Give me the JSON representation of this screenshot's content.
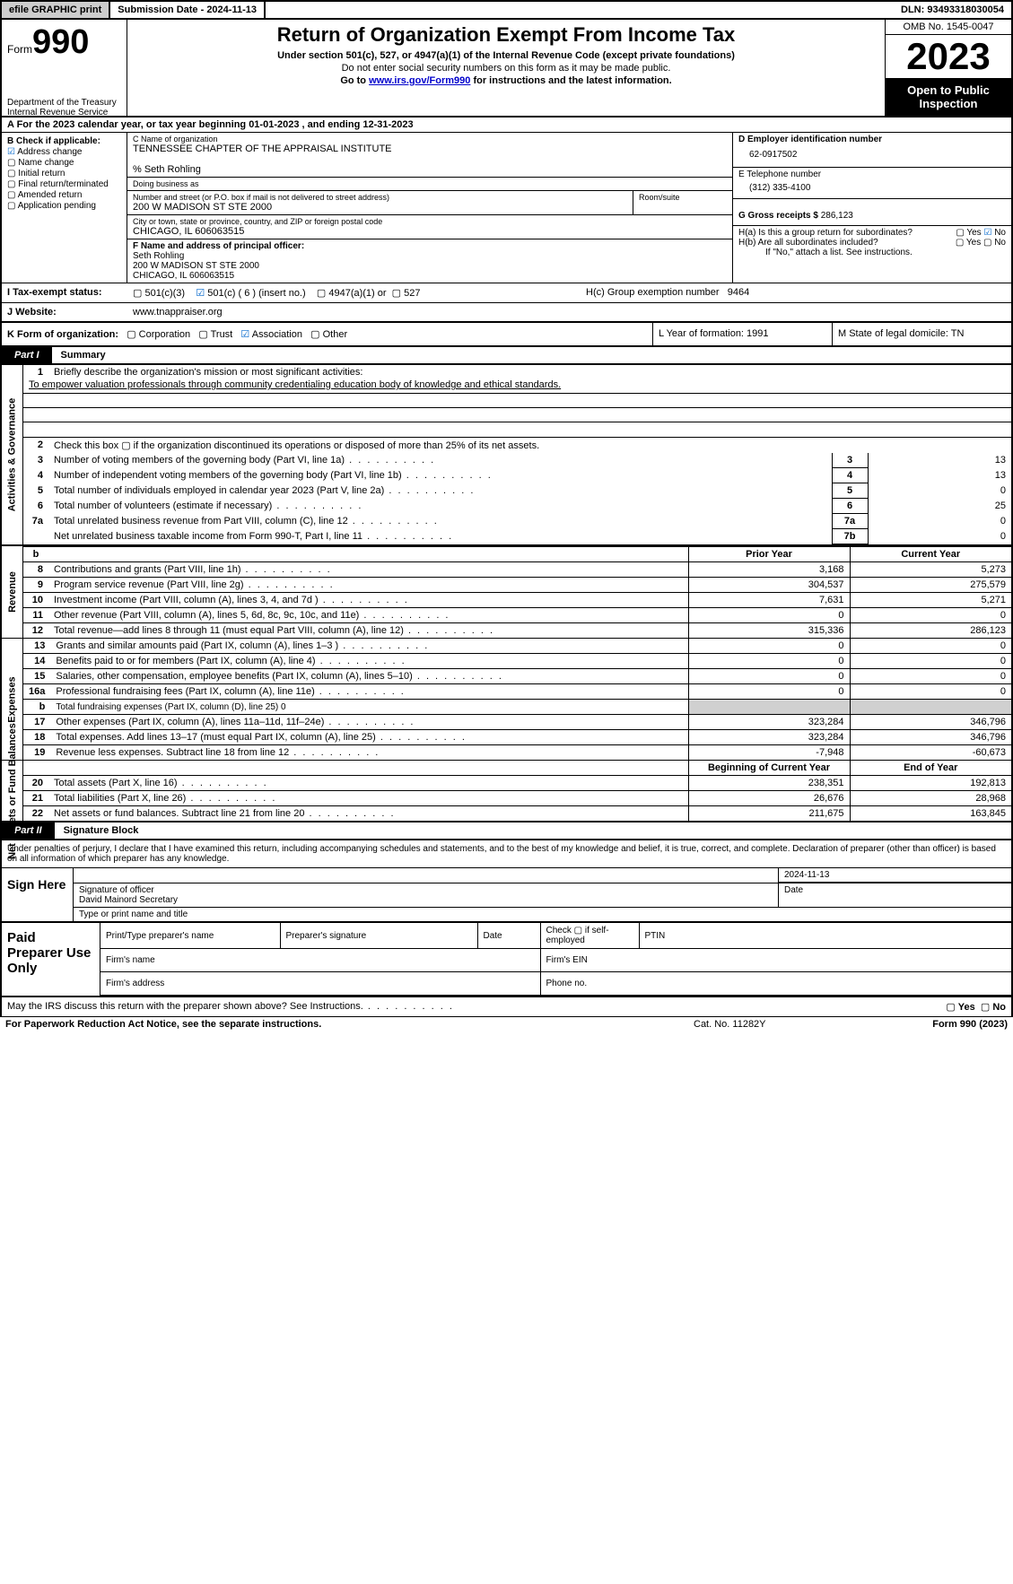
{
  "topbar": {
    "efile_btn": "efile GRAPHIC print",
    "submission": "Submission Date - 2024-11-13",
    "dln": "DLN: 93493318030054"
  },
  "header": {
    "form_label": "Form",
    "form_no": "990",
    "dept": "Department of the Treasury",
    "irs": "Internal Revenue Service",
    "title": "Return of Organization Exempt From Income Tax",
    "sub1": "Under section 501(c), 527, or 4947(a)(1) of the Internal Revenue Code (except private foundations)",
    "sub2": "Do not enter social security numbers on this form as it may be made public.",
    "sub3_pre": "Go to ",
    "sub3_link": "www.irs.gov/Form990",
    "sub3_post": " for instructions and the latest information.",
    "omb": "OMB No. 1545-0047",
    "year": "2023",
    "open": "Open to Public Inspection"
  },
  "row_a": "A  For the 2023 calendar year, or tax year beginning 01-01-2023    , and ending 12-31-2023",
  "col_b": {
    "label": "B Check if applicable:",
    "items": [
      "Address change",
      "Name change",
      "Initial return",
      "Final return/terminated",
      "Amended return",
      "Application pending"
    ]
  },
  "col_c": {
    "name_lbl": "C Name of organization",
    "name": "TENNESSEE CHAPTER OF THE APPRAISAL INSTITUTE",
    "care": "% Seth Rohling",
    "dba_lbl": "Doing business as",
    "addr_lbl": "Number and street (or P.O. box if mail is not delivered to street address)",
    "addr": "200 W MADISON ST STE 2000",
    "room_lbl": "Room/suite",
    "city_lbl": "City or town, state or province, country, and ZIP or foreign postal code",
    "city": "CHICAGO, IL  606063515",
    "f_lbl": "F  Name and address of principal officer:",
    "f_name": "Seth Rohling",
    "f_addr1": "200 W MADISON ST STE 2000",
    "f_addr2": "CHICAGO, IL  606063515"
  },
  "col_d": {
    "ein_lbl": "D Employer identification number",
    "ein": "62-0917502",
    "tel_lbl": "E Telephone number",
    "tel": "(312) 335-4100",
    "gross_lbl": "G Gross receipts $ ",
    "gross": "286,123",
    "ha_lbl": "H(a)  Is this a group return for subordinates?",
    "hb_lbl": "H(b)  Are all subordinates included?",
    "hb_note": "If \"No,\" attach a list. See instructions.",
    "hc_lbl": "H(c)  Group exemption number  ",
    "hc_val": "9464"
  },
  "row_i": {
    "label": "I   Tax-exempt status:",
    "opts": [
      "501(c)(3)",
      "501(c) ( 6 ) (insert no.)",
      "4947(a)(1) or",
      "527"
    ]
  },
  "row_j": {
    "label": "J   Website: ",
    "val": "www.tnappraiser.org"
  },
  "row_k": {
    "label": "K Form of organization:",
    "opts": [
      "Corporation",
      "Trust",
      "Association",
      "Other"
    ],
    "l": "L Year of formation: 1991",
    "m": "M State of legal domicile: TN"
  },
  "part1": {
    "num": "Part I",
    "title": "Summary"
  },
  "section_labels": {
    "governance": "Activities & Governance",
    "revenue": "Revenue",
    "expenses": "Expenses",
    "net": "Net Assets or Fund Balances"
  },
  "p1_lines": {
    "l1_lbl": "Briefly describe the organization's mission or most significant activities:",
    "l1_val": "To empower valuation professionals through community credentialing education body of knowledge and ethical standards.",
    "l2": "Check this box ▢  if the organization discontinued its operations or disposed of more than 25% of its net assets.",
    "l3": "Number of voting members of the governing body (Part VI, line 1a)",
    "l4": "Number of independent voting members of the governing body (Part VI, line 1b)",
    "l5": "Total number of individuals employed in calendar year 2023 (Part V, line 2a)",
    "l6": "Total number of volunteers (estimate if necessary)",
    "l7a": "Total unrelated business revenue from Part VIII, column (C), line 12",
    "l7b": "Net unrelated business taxable income from Form 990-T, Part I, line 11",
    "v3": "13",
    "v4": "13",
    "v5": "0",
    "v6": "25",
    "v7a": "0",
    "v7b": "0"
  },
  "revenue": {
    "hd_py": "Prior Year",
    "hd_cy": "Current Year",
    "rows": [
      {
        "n": "8",
        "t": "Contributions and grants (Part VIII, line 1h)",
        "py": "3,168",
        "cy": "5,273"
      },
      {
        "n": "9",
        "t": "Program service revenue (Part VIII, line 2g)",
        "py": "304,537",
        "cy": "275,579"
      },
      {
        "n": "10",
        "t": "Investment income (Part VIII, column (A), lines 3, 4, and 7d )",
        "py": "7,631",
        "cy": "5,271"
      },
      {
        "n": "11",
        "t": "Other revenue (Part VIII, column (A), lines 5, 6d, 8c, 9c, 10c, and 11e)",
        "py": "0",
        "cy": "0"
      },
      {
        "n": "12",
        "t": "Total revenue—add lines 8 through 11 (must equal Part VIII, column (A), line 12)",
        "py": "315,336",
        "cy": "286,123"
      }
    ]
  },
  "expenses": {
    "rows": [
      {
        "n": "13",
        "t": "Grants and similar amounts paid (Part IX, column (A), lines 1–3 )",
        "py": "0",
        "cy": "0"
      },
      {
        "n": "14",
        "t": "Benefits paid to or for members (Part IX, column (A), line 4)",
        "py": "0",
        "cy": "0"
      },
      {
        "n": "15",
        "t": "Salaries, other compensation, employee benefits (Part IX, column (A), lines 5–10)",
        "py": "0",
        "cy": "0"
      },
      {
        "n": "16a",
        "t": "Professional fundraising fees (Part IX, column (A), line 11e)",
        "py": "0",
        "cy": "0"
      },
      {
        "n": "b",
        "t": "Total fundraising expenses (Part IX, column (D), line 25) 0",
        "shade": true
      },
      {
        "n": "17",
        "t": "Other expenses (Part IX, column (A), lines 11a–11d, 11f–24e)",
        "py": "323,284",
        "cy": "346,796"
      },
      {
        "n": "18",
        "t": "Total expenses. Add lines 13–17 (must equal Part IX, column (A), line 25)",
        "py": "323,284",
        "cy": "346,796"
      },
      {
        "n": "19",
        "t": "Revenue less expenses. Subtract line 18 from line 12",
        "py": "-7,948",
        "cy": "-60,673"
      }
    ]
  },
  "net": {
    "hd_py": "Beginning of Current Year",
    "hd_cy": "End of Year",
    "rows": [
      {
        "n": "20",
        "t": "Total assets (Part X, line 16)",
        "py": "238,351",
        "cy": "192,813"
      },
      {
        "n": "21",
        "t": "Total liabilities (Part X, line 26)",
        "py": "26,676",
        "cy": "28,968"
      },
      {
        "n": "22",
        "t": "Net assets or fund balances. Subtract line 21 from line 20",
        "py": "211,675",
        "cy": "163,845"
      }
    ]
  },
  "part2": {
    "num": "Part II",
    "title": "Signature Block"
  },
  "decl": "Under penalties of perjury, I declare that I have examined this return, including accompanying schedules and statements, and to the best of my knowledge and belief, it is true, correct, and complete. Declaration of preparer (other than officer) is based on all information of which preparer has any knowledge.",
  "sign": {
    "label": "Sign Here",
    "sig_lbl": "Signature of officer",
    "date_lbl": "Date",
    "date": "2024-11-13",
    "name": "David Mainord  Secretary",
    "name_lbl": "Type or print name and title"
  },
  "paid": {
    "label": "Paid Preparer Use Only",
    "c1": "Print/Type preparer's name",
    "c2": "Preparer's signature",
    "c3": "Date",
    "c4": "Check ▢ if self-employed",
    "c5": "PTIN",
    "r2a": "Firm's name",
    "r2b": "Firm's EIN",
    "r3a": "Firm's address",
    "r3b": "Phone no."
  },
  "foot": {
    "q": "May the IRS discuss this return with the preparer shown above? See Instructions.",
    "yes": "Yes",
    "no": "No",
    "pra": "For Paperwork Reduction Act Notice, see the separate instructions.",
    "cat": "Cat. No. 11282Y",
    "form": "Form 990 (2023)"
  }
}
